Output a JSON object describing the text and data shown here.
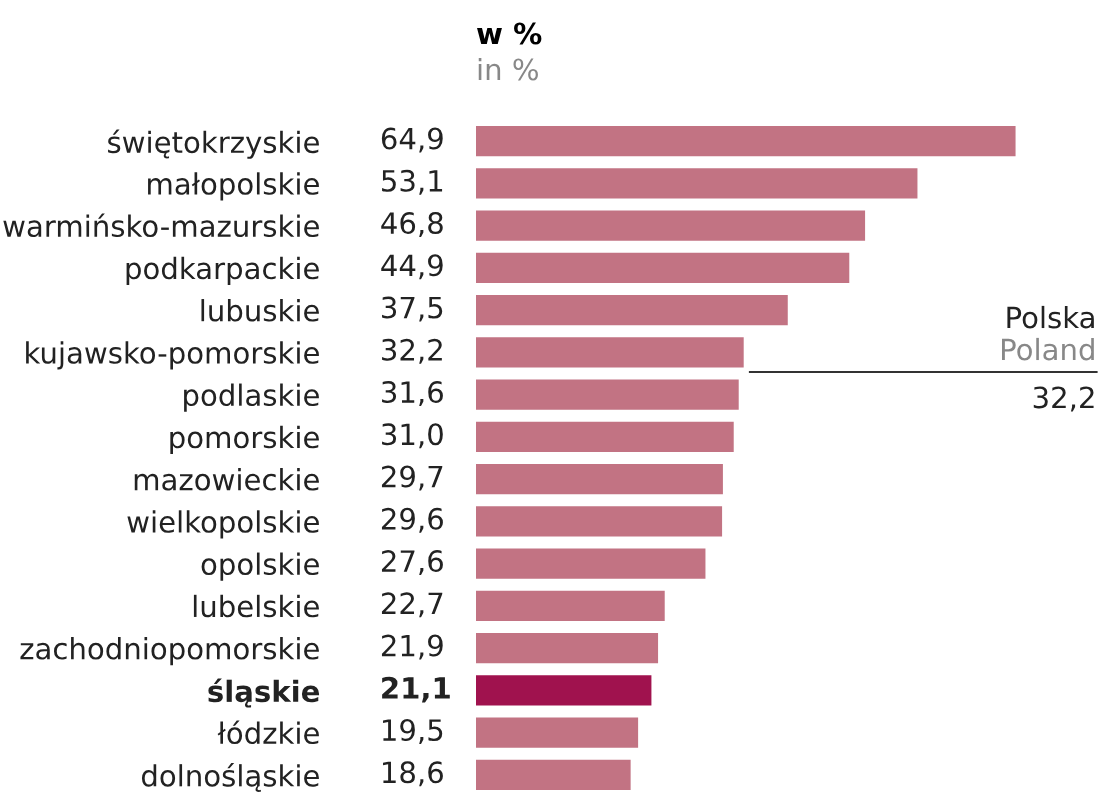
{
  "chart_data": {
    "type": "bar",
    "orientation": "horizontal",
    "title": "w %",
    "subtitle": "in %",
    "categories": [
      "świętokrzyskie",
      "małopolskie",
      "warmińsko-mazurskie",
      "podkarpackie",
      "lubuskie",
      "kujawsko-pomorskie",
      "podlaskie",
      "pomorskie",
      "mazowieckie",
      "wielkopolskie",
      "opolskie",
      "lubelskie",
      "zachodniopomorskie",
      "śląskie",
      "łódzkie",
      "dolnośląskie"
    ],
    "values": [
      64.9,
      53.1,
      46.8,
      44.9,
      37.5,
      32.2,
      31.6,
      31.0,
      29.7,
      29.6,
      27.6,
      22.7,
      21.9,
      21.1,
      19.5,
      18.6
    ],
    "value_labels": [
      "64,9",
      "53,1",
      "46,8",
      "44,9",
      "37,5",
      "32,2",
      "31,6",
      "31,0",
      "29,7",
      "29,6",
      "27,6",
      "22,7",
      "21,9",
      "21,1",
      "19,5",
      "18,6"
    ],
    "colors": [
      "#c27383",
      "#c27383",
      "#c27383",
      "#c27383",
      "#c27383",
      "#c27383",
      "#c27383",
      "#c27383",
      "#c27383",
      "#c27383",
      "#c27383",
      "#c27383",
      "#c27383",
      "#a0124e",
      "#c27383",
      "#c27383"
    ],
    "annotations": [
      "Polska",
      "Poland",
      "32,2"
    ],
    "grid": false
  }
}
